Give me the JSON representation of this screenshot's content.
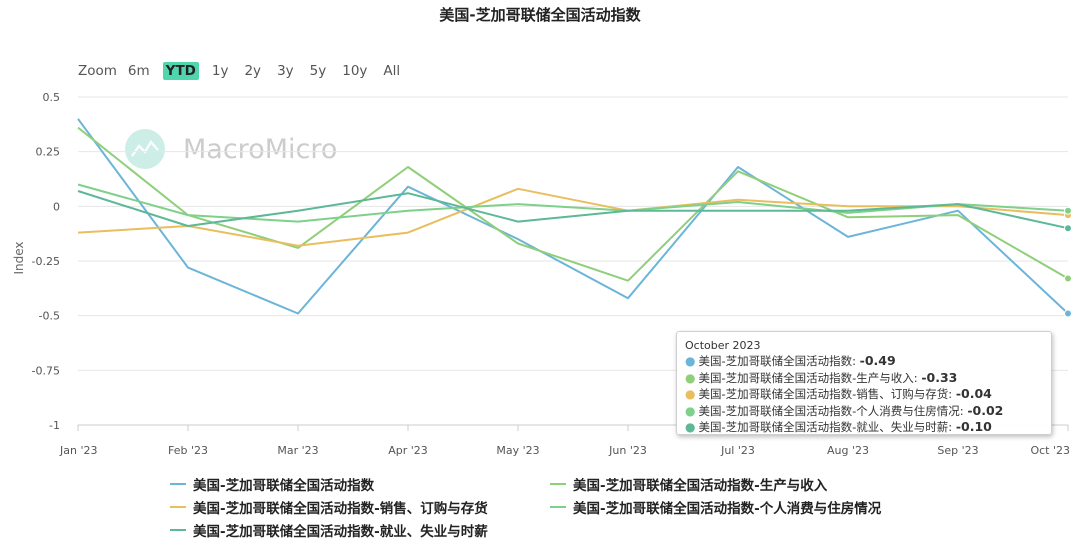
{
  "chart_data": {
    "type": "line",
    "title": "美国-芝加哥联储全国活动指数",
    "ylabel": "Index",
    "xlabel": "",
    "categories": [
      "Jan '23",
      "Feb '23",
      "Mar '23",
      "Apr '23",
      "May '23",
      "Jun '23",
      "Jul '23",
      "Aug '23",
      "Sep '23",
      "Oct '23"
    ],
    "yticks": [
      "0.5",
      "0.25",
      "0",
      "-0.25",
      "-0.5",
      "-0.75",
      "-1"
    ],
    "ylim": [
      -1,
      0.5
    ],
    "grid": true,
    "legend_position": "bottom",
    "series": [
      {
        "name": "美国-芝加哥联储全国活动指数",
        "color": "#6bb5d8",
        "values": [
          0.4,
          -0.28,
          -0.49,
          0.09,
          -0.15,
          -0.42,
          0.18,
          -0.14,
          -0.02,
          -0.49
        ]
      },
      {
        "name": "美国-芝加哥联储全国活动指数-生产与收入",
        "color": "#8fcf79",
        "values": [
          0.36,
          -0.04,
          -0.19,
          0.18,
          -0.17,
          -0.34,
          0.16,
          -0.05,
          -0.04,
          -0.33
        ]
      },
      {
        "name": "美国-芝加哥联储全国活动指数-销售、订购与存货",
        "color": "#e8be5f",
        "values": [
          -0.12,
          -0.09,
          -0.18,
          -0.12,
          0.08,
          -0.02,
          0.03,
          0.0,
          0.0,
          -0.04
        ]
      },
      {
        "name": "美国-芝加哥联储全国活动指数-个人消费与住房情况",
        "color": "#7ed08a",
        "values": [
          0.1,
          -0.04,
          -0.07,
          -0.02,
          0.01,
          -0.02,
          0.02,
          -0.03,
          0.01,
          -0.02
        ]
      },
      {
        "name": "美国-芝加哥联储全国活动指数-就业、失业与时薪",
        "color": "#5db896",
        "values": [
          0.07,
          -0.09,
          -0.02,
          0.06,
          -0.07,
          -0.02,
          -0.02,
          -0.02,
          0.01,
          -0.1
        ]
      }
    ]
  },
  "zoom": {
    "label": "Zoom",
    "buttons": [
      "6m",
      "YTD",
      "1y",
      "2y",
      "3y",
      "5y",
      "10y",
      "All"
    ],
    "active": "YTD"
  },
  "watermark": "MacroMicro",
  "tooltip": {
    "header": "October 2023",
    "rows": [
      {
        "label": "美国-芝加哥联储全国活动指数:",
        "value": "-0.49",
        "color": "#6bb5d8"
      },
      {
        "label": "美国-芝加哥联储全国活动指数-生产与收入:",
        "value": "-0.33",
        "color": "#8fcf79"
      },
      {
        "label": "美国-芝加哥联储全国活动指数-销售、订购与存货:",
        "value": "-0.04",
        "color": "#e8be5f"
      },
      {
        "label": "美国-芝加哥联储全国活动指数-个人消费与住房情况:",
        "value": "-0.02",
        "color": "#7ed08a"
      },
      {
        "label": "美国-芝加哥联储全国活动指数-就业、失业与时薪:",
        "value": "-0.10",
        "color": "#5db896"
      }
    ]
  }
}
